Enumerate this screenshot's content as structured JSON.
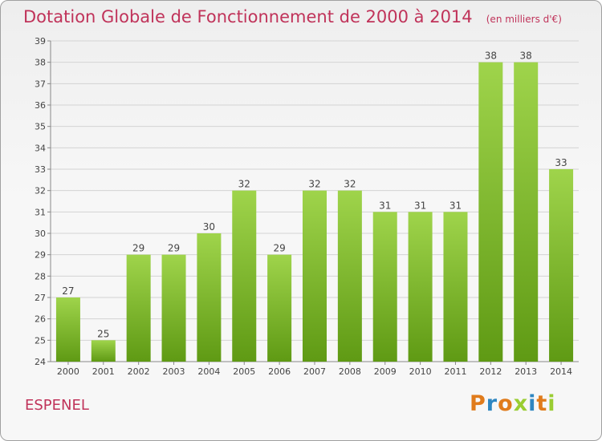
{
  "title": "Dotation Globale de Fonctionnement de 2000 à 2014",
  "unit_label": "(en milliers d'€)",
  "commune": "ESPENEL",
  "logo_letters": [
    "P",
    "r",
    "o",
    "x",
    "i",
    "t",
    "i"
  ],
  "colors": {
    "title": "#c0335a",
    "bar_light": "#9fd44b",
    "bar_dark": "#5f9a14",
    "grid": "#d3d3d3"
  },
  "chart_data": {
    "type": "bar",
    "categories": [
      "2000",
      "2001",
      "2002",
      "2003",
      "2004",
      "2005",
      "2006",
      "2007",
      "2008",
      "2009",
      "2010",
      "2011",
      "2012",
      "2013",
      "2014"
    ],
    "values": [
      27,
      25,
      29,
      29,
      30,
      32,
      29,
      32,
      32,
      31,
      31,
      31,
      38,
      38,
      33
    ],
    "title": "Dotation Globale de Fonctionnement de 2000 à 2014",
    "subtitle": "(en milliers d'€)",
    "ylim": [
      24,
      39
    ],
    "yticks": [
      24,
      25,
      26,
      27,
      28,
      29,
      30,
      31,
      32,
      33,
      34,
      35,
      36,
      37,
      38,
      39
    ],
    "grid": true
  }
}
